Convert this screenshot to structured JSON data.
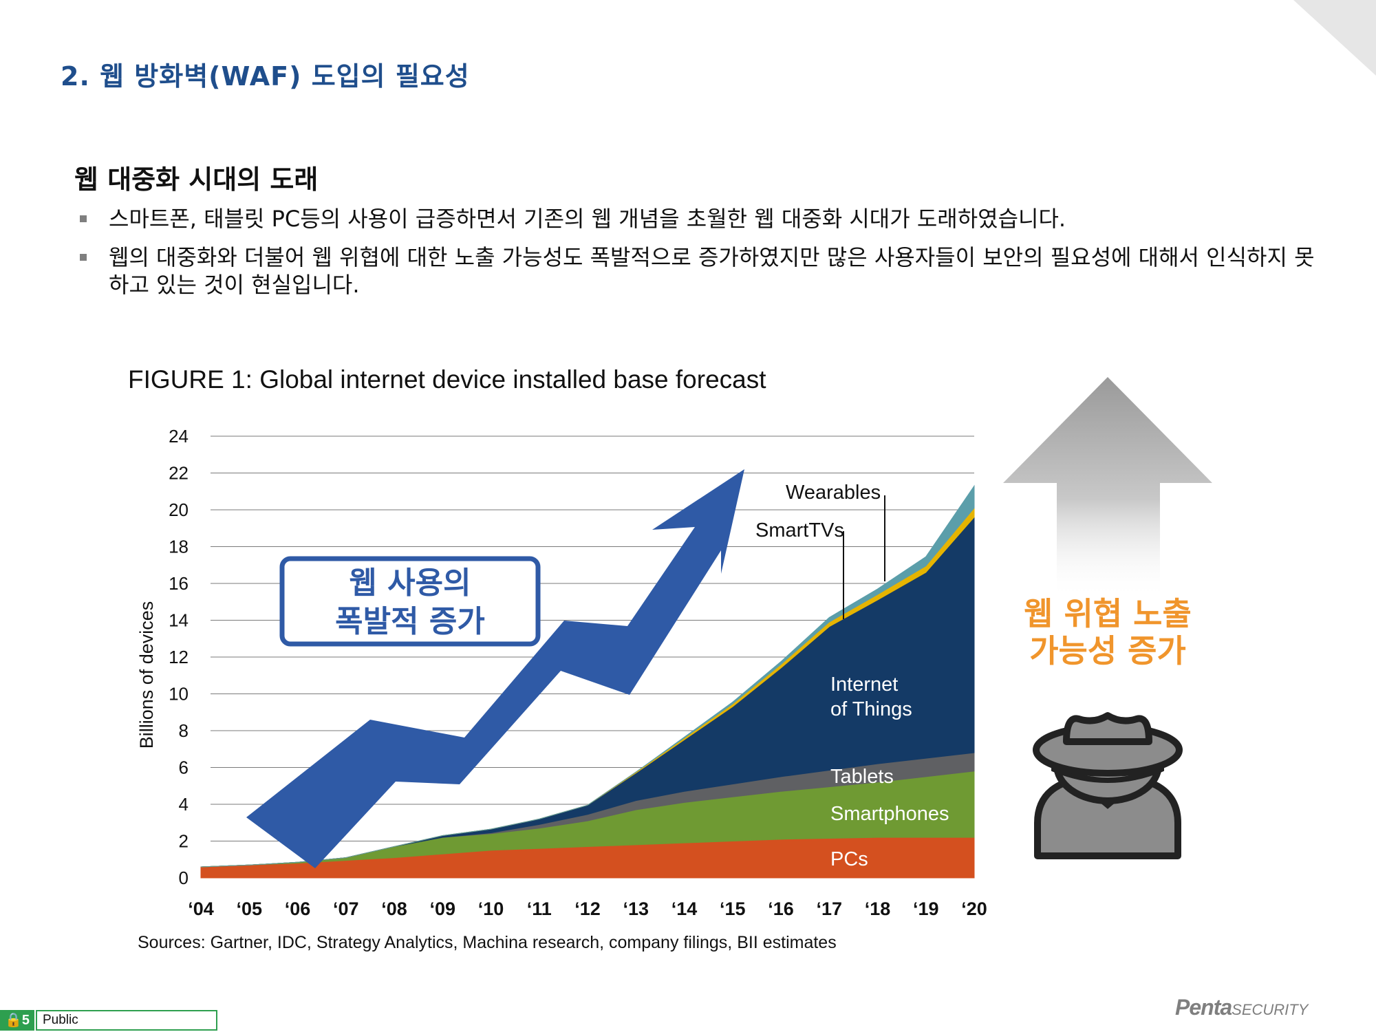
{
  "slide": {
    "title": "2. 웹 방화벽(WAF) 도입의 필요성",
    "section_heading": "웹 대중화 시대의 도래",
    "bullets": [
      "스마트폰, 태블릿 PC등의 사용이 급증하면서 기존의 웹 개념을 초월한 웹 대중화 시대가 도래하였습니다.",
      "웹의 대중화와 더불어 웹 위협에 대한 노출 가능성도 폭발적으로 증가하였지만 많은 사용자들이 보안의 필요성에 대해서 인식하지 못하고 있는 것이 현실입니다."
    ]
  },
  "callouts": {
    "usage_line1": "웹 사용의",
    "usage_line2": "폭발적 증가",
    "threat_line1": "웹 위협 노출",
    "threat_line2": "가능성 증가"
  },
  "footer": {
    "logo_main": "Penta",
    "logo_sub": "SECURITY",
    "page_number": "5",
    "classification": "Public"
  },
  "colors": {
    "title_blue": "#1f4e8c",
    "pcs": "#d4501f",
    "smartphones": "#6f9a33",
    "tablets": "#5f6063",
    "iot": "#143a66",
    "smarttvs": "#e6b400",
    "wearables": "#5b9eaa",
    "arrow_blue": "#2f5aa6",
    "threat_orange": "#f0952c",
    "grey_icon": "#8c8c8c"
  },
  "icons": {
    "usage_arrow": "zigzag-up-arrow-icon",
    "threat_arrow": "up-arrow-icon",
    "hacker": "hacker-icon"
  },
  "chart_data": {
    "type": "area",
    "title": "FIGURE 1: Global internet device installed base forecast",
    "ylabel": "Billions of devices",
    "xlabel": "",
    "source": "Sources: Gartner, IDC, Strategy Analytics, Machina research, company filings, BII estimates",
    "ylim": [
      0,
      24
    ],
    "yticks": [
      "0",
      "2",
      "4",
      "6",
      "8",
      "10",
      "12",
      "14",
      "16",
      "18",
      "20",
      "22",
      "24"
    ],
    "categories": [
      "‘04",
      "‘05",
      "‘06",
      "‘07",
      "‘08",
      "‘09",
      "‘10",
      "‘11",
      "‘12",
      "‘13",
      "‘14",
      "‘15",
      "‘16",
      "‘17",
      "‘18",
      "‘19",
      "‘20"
    ],
    "stacked": true,
    "grid": true,
    "series": [
      {
        "name": "PCs",
        "values": [
          0.6,
          0.7,
          0.8,
          0.95,
          1.1,
          1.3,
          1.5,
          1.6,
          1.7,
          1.8,
          1.9,
          2.0,
          2.1,
          2.15,
          2.2,
          2.2,
          2.2
        ]
      },
      {
        "name": "Smartphones",
        "values": [
          0,
          0,
          0.05,
          0.15,
          0.6,
          0.9,
          0.9,
          1.1,
          1.4,
          1.9,
          2.2,
          2.4,
          2.6,
          2.8,
          3.0,
          3.3,
          3.6
        ]
      },
      {
        "name": "Tablets",
        "values": [
          0,
          0,
          0,
          0,
          0,
          0,
          0.05,
          0.2,
          0.35,
          0.5,
          0.6,
          0.7,
          0.8,
          0.9,
          1.0,
          1.0,
          1.0
        ]
      },
      {
        "name": "Internet of Things",
        "values": [
          0,
          0,
          0,
          0,
          0,
          0.1,
          0.2,
          0.3,
          0.5,
          1.5,
          2.8,
          4.2,
          5.9,
          7.8,
          8.9,
          10.1,
          12.8
        ]
      },
      {
        "name": "SmartTVs",
        "values": [
          0,
          0,
          0,
          0,
          0,
          0,
          0,
          0,
          0,
          0.05,
          0.1,
          0.15,
          0.2,
          0.25,
          0.3,
          0.35,
          0.5
        ]
      },
      {
        "name": "Wearables",
        "values": [
          0,
          0,
          0,
          0,
          0,
          0,
          0,
          0,
          0,
          0,
          0.05,
          0.1,
          0.15,
          0.25,
          0.3,
          0.5,
          1.2
        ]
      }
    ],
    "series_labels": [
      "Wearables",
      "SmartTVs",
      "Internet\nof Things",
      "Tablets",
      "Smartphones",
      "PCs"
    ]
  }
}
